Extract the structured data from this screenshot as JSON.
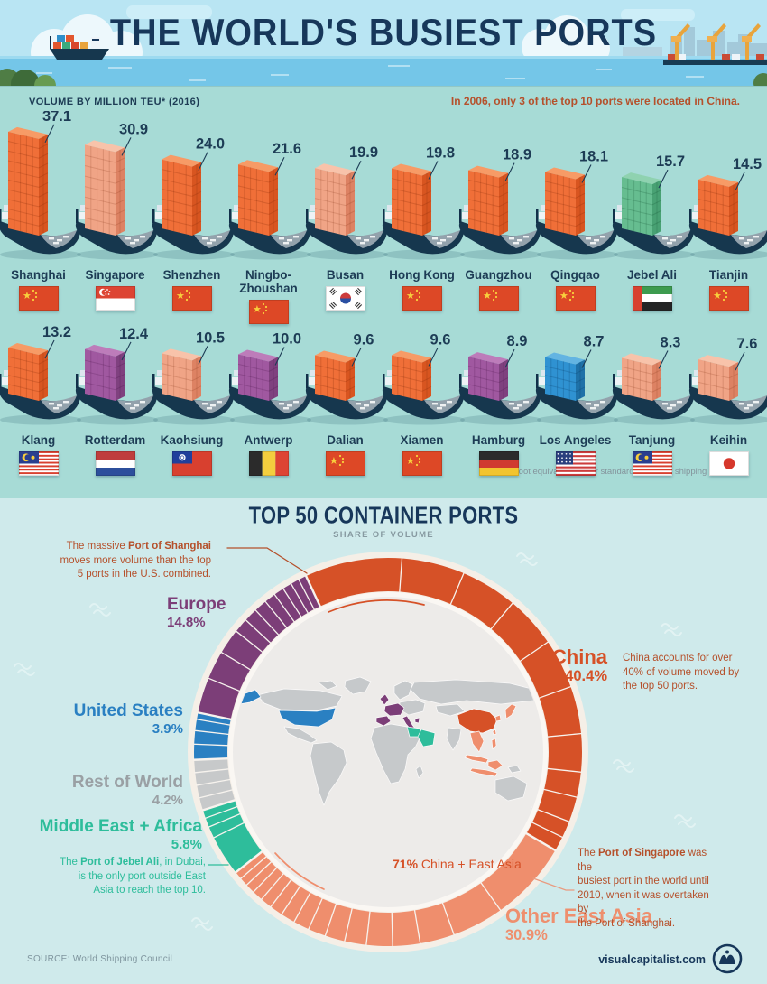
{
  "header": {
    "title": "THE WORLD'S BUSIEST PORTS"
  },
  "ships_section": {
    "volume_label": "VOLUME BY MILLION TEU* (2016)",
    "china_note": "In 2006, only 3 of the top 10 ports were located in China.",
    "footnote": "*20 foot equivalent unit or standard 6.1 meter shipping container",
    "rows": [
      [
        {
          "name": "Shanghai",
          "value": 37.1,
          "flag": "cn",
          "country": "China",
          "stack": "orange"
        },
        {
          "name": "Singapore",
          "value": 30.9,
          "flag": "sg",
          "country": "Singapore",
          "stack": "salmon"
        },
        {
          "name": "Shenzhen",
          "value": 24.0,
          "flag": "cn",
          "country": "China",
          "stack": "orange"
        },
        {
          "name": "Ningbo-Zhoushan",
          "value": 21.6,
          "flag": "cn",
          "country": "China",
          "stack": "orange"
        },
        {
          "name": "Busan",
          "value": 19.9,
          "flag": "kr",
          "country": "South Korea",
          "stack": "salmon"
        },
        {
          "name": "Hong Kong",
          "value": 19.8,
          "flag": "cn",
          "country": "China",
          "stack": "orange"
        },
        {
          "name": "Guangzhou",
          "value": 18.9,
          "flag": "cn",
          "country": "China",
          "stack": "orange"
        },
        {
          "name": "Qingqao",
          "value": 18.1,
          "flag": "cn",
          "country": "China",
          "stack": "orange"
        },
        {
          "name": "Jebel Ali",
          "value": 15.7,
          "flag": "ae",
          "country": "United Arab Emirates",
          "stack": "green"
        },
        {
          "name": "Tianjin",
          "value": 14.5,
          "flag": "cn",
          "country": "China",
          "stack": "orange"
        }
      ],
      [
        {
          "name": "Klang",
          "value": 13.2,
          "flag": "my",
          "country": "Malaysia",
          "stack": "orange"
        },
        {
          "name": "Rotterdam",
          "value": 12.4,
          "flag": "nl",
          "country": "Netherlands",
          "stack": "purple"
        },
        {
          "name": "Kaohsiung",
          "value": 10.5,
          "flag": "tw",
          "country": "Taiwan",
          "stack": "salmon"
        },
        {
          "name": "Antwerp",
          "value": 10.0,
          "flag": "be",
          "country": "Belgium",
          "stack": "purple"
        },
        {
          "name": "Dalian",
          "value": 9.6,
          "flag": "cn",
          "country": "China",
          "stack": "orange"
        },
        {
          "name": "Xiamen",
          "value": 9.6,
          "flag": "cn",
          "country": "China",
          "stack": "orange"
        },
        {
          "name": "Hamburg",
          "value": 8.9,
          "flag": "de",
          "country": "Germany",
          "stack": "purple"
        },
        {
          "name": "Los Angeles",
          "value": 8.7,
          "flag": "us",
          "country": "United States",
          "stack": "blue"
        },
        {
          "name": "Tanjung",
          "value": 8.3,
          "flag": "my",
          "country": "Malaysia",
          "stack": "salmon"
        },
        {
          "name": "Keihin",
          "value": 7.6,
          "flag": "jp",
          "country": "Japan",
          "stack": "salmon"
        }
      ]
    ]
  },
  "donut_section": {
    "title": "TOP 50 CONTAINER PORTS",
    "subtitle": "SHARE OF VOLUME",
    "center_callout": [
      {
        "t": "71%",
        "b": 1
      },
      {
        "t": " China + East Asia"
      }
    ],
    "annotations": {
      "shanghai": {
        "lines": [
          [
            {
              "t": "The massive "
            },
            {
              "t": "Port of Shanghai",
              "b": 1
            }
          ],
          [
            {
              "t": "moves more volume than the top"
            }
          ],
          [
            {
              "t": "5 ports in the U.S. combined."
            }
          ]
        ]
      },
      "china": {
        "lines": [
          [
            {
              "t": "China accounts for over"
            }
          ],
          [
            {
              "t": "40% of volume moved by"
            }
          ],
          [
            {
              "t": "the top 50 ports."
            }
          ]
        ]
      },
      "jebel": {
        "lines": [
          [
            {
              "t": "The "
            },
            {
              "t": "Port of Jebel Ali",
              "b": 1
            },
            {
              "t": ", in Dubai,"
            }
          ],
          [
            {
              "t": "is the only port outside East"
            }
          ],
          [
            {
              "t": "Asia to reach the top 10."
            }
          ]
        ]
      },
      "singapore": {
        "lines": [
          [
            {
              "t": "The "
            },
            {
              "t": "Port of Singapore",
              "b": 1
            },
            {
              "t": " was the"
            }
          ],
          [
            {
              "t": "busiest port in the world until"
            }
          ],
          [
            {
              "t": "2010, when it was overtaken by"
            }
          ],
          [
            {
              "t": "the Port of Shanghai."
            }
          ]
        ]
      }
    }
  },
  "footer": {
    "source": "SOURCE: World Shipping Council",
    "site": "visualcapitalist.com"
  },
  "palette": {
    "navy": "#1d3c55",
    "rust": "#b5502b",
    "china": "#d65127",
    "other_east_asia": "#ef8e6d",
    "middle_east_africa": "#2ebd9b",
    "rest_of_world": "#c7c9ca",
    "united_states": "#2a80c2",
    "europe": "#7c3e78",
    "stack_orange": "#f06f38",
    "stack_salmon": "#f0a486",
    "stack_green": "#66bd90",
    "stack_purple": "#a058a0",
    "stack_blue": "#2f92d2"
  },
  "chart_data": [
    {
      "type": "bar",
      "title": "VOLUME BY MILLION TEU* (2016)",
      "unit": "million TEU",
      "year": 2016,
      "categories": [
        "Shanghai",
        "Singapore",
        "Shenzhen",
        "Ningbo-Zhoushan",
        "Busan",
        "Hong Kong",
        "Guangzhou",
        "Qingqao",
        "Jebel Ali",
        "Tianjin",
        "Klang",
        "Rotterdam",
        "Kaohsiung",
        "Antwerp",
        "Dalian",
        "Xiamen",
        "Hamburg",
        "Los Angeles",
        "Tanjung",
        "Keihin"
      ],
      "values": [
        37.1,
        30.9,
        24.0,
        21.6,
        19.9,
        19.8,
        18.9,
        18.1,
        15.7,
        14.5,
        13.2,
        12.4,
        10.5,
        10.0,
        9.6,
        9.6,
        8.9,
        8.7,
        8.3,
        7.6
      ],
      "countries": [
        "China",
        "Singapore",
        "China",
        "China",
        "South Korea",
        "China",
        "China",
        "China",
        "United Arab Emirates",
        "China",
        "Malaysia",
        "Netherlands",
        "Taiwan",
        "Belgium",
        "China",
        "China",
        "Germany",
        "United States",
        "Malaysia",
        "Japan"
      ]
    },
    {
      "type": "pie",
      "title": "TOP 50 CONTAINER PORTS",
      "subtitle": "SHARE OF VOLUME",
      "start_angle_deg": -25,
      "segments": [
        {
          "label": "China",
          "pct": 40.4,
          "pct_label": "40.4%"
        },
        {
          "label": "Other East Asia",
          "pct": 30.9,
          "pct_label": "30.9%"
        },
        {
          "label": "Middle East + Africa",
          "pct": 5.8,
          "pct_label": "5.8%"
        },
        {
          "label": "Rest of World",
          "pct": 4.2,
          "pct_label": "4.2%"
        },
        {
          "label": "United States",
          "pct": 3.9,
          "pct_label": "3.9%"
        },
        {
          "label": "Europe",
          "pct": 14.8,
          "pct_label": "14.8%"
        }
      ],
      "callout": "71% China + East Asia"
    }
  ]
}
